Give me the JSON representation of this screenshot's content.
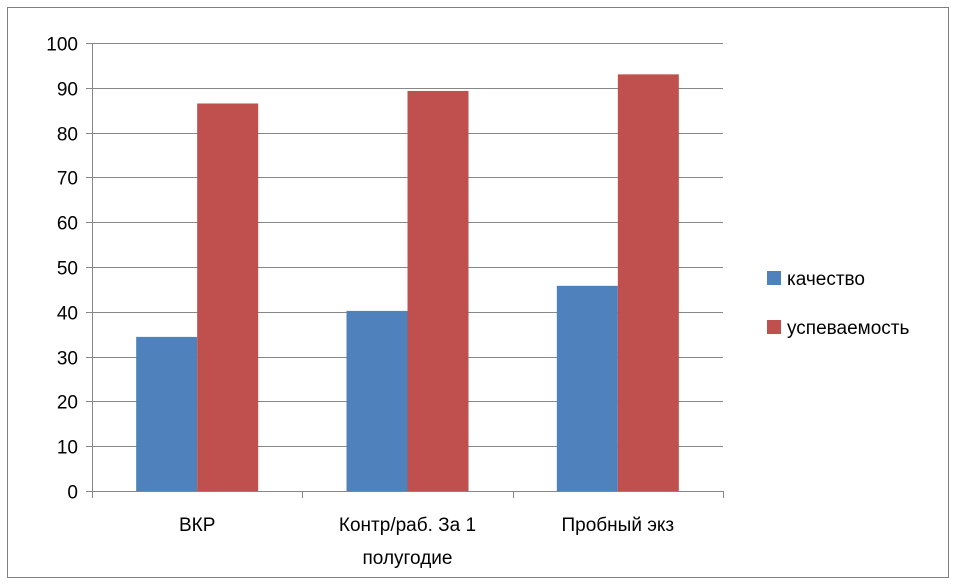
{
  "chart_data": {
    "type": "bar",
    "title": "",
    "xlabel": "",
    "ylabel": "",
    "ylim": [
      0,
      100
    ],
    "yticks": [
      0,
      10,
      20,
      30,
      40,
      50,
      60,
      70,
      80,
      90,
      100
    ],
    "grid": true,
    "legend_position": "right",
    "categories": [
      [
        "ВКР"
      ],
      [
        "Контр/раб. За 1",
        "полугодие"
      ],
      [
        "Пробный экз"
      ]
    ],
    "series": [
      {
        "name": "качество",
        "color": "#4f81bd",
        "values": [
          34.4,
          40.2,
          45.8
        ]
      },
      {
        "name": "успеваемость",
        "color": "#c0504d",
        "values": [
          86.5,
          89.3,
          93.0
        ]
      }
    ]
  }
}
